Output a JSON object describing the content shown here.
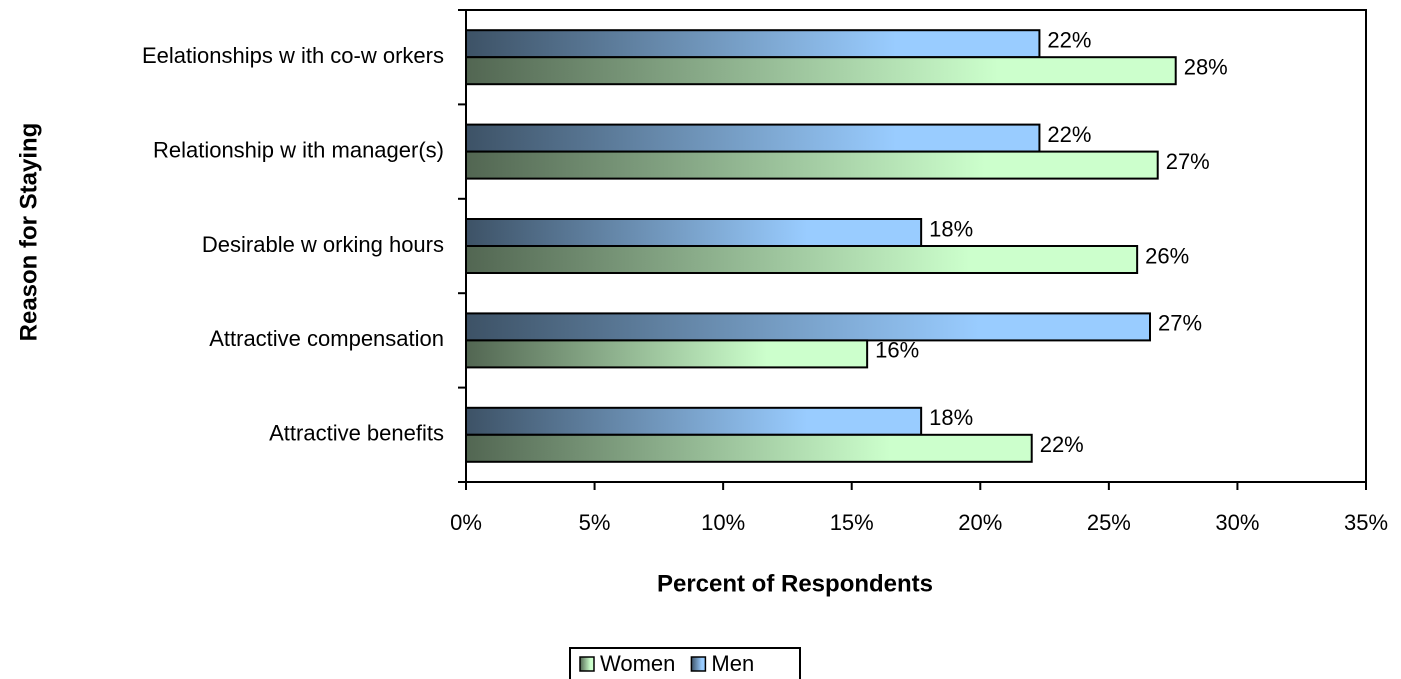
{
  "chart_data": {
    "type": "hbar",
    "x_label": "Percent of Respondents",
    "y_label": "Reason for Staying",
    "categories": [
      "Eelationships w ith co-w orkers",
      "Relationship w ith manager(s)",
      "Desirable w orking hours",
      "Attractive compensation",
      "Attractive benefits"
    ],
    "series": [
      {
        "name": "Women",
        "color": "#ccffcc",
        "values": [
          27.6,
          26.9,
          26.1,
          15.6,
          22.0
        ],
        "value_labels": [
          "28%",
          "27%",
          "26%",
          "16%",
          "22%"
        ]
      },
      {
        "name": "Men",
        "color": "#99ccff",
        "values": [
          22.3,
          22.3,
          17.7,
          26.6,
          17.7
        ],
        "value_labels": [
          "22%",
          "22%",
          "18%",
          "27%",
          "18%"
        ]
      }
    ],
    "xlim": [
      0,
      35
    ],
    "xticks": [
      {
        "value": 0,
        "label": "0%"
      },
      {
        "value": 5,
        "label": "5%"
      },
      {
        "value": 10,
        "label": "10%"
      },
      {
        "value": 15,
        "label": "15%"
      },
      {
        "value": 20,
        "label": "20%"
      },
      {
        "value": 25,
        "label": "25%"
      },
      {
        "value": 30,
        "label": "30%"
      },
      {
        "value": 35,
        "label": "35%"
      }
    ],
    "legend": "bottom"
  }
}
